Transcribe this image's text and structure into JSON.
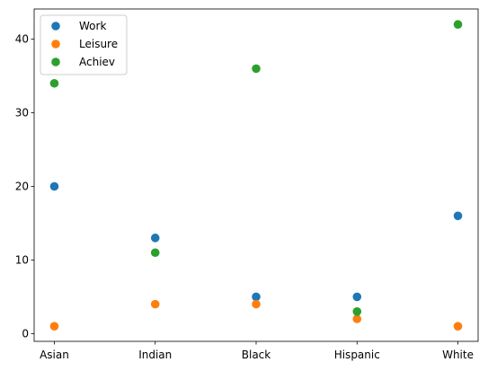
{
  "chart_data": {
    "type": "scatter",
    "categories": [
      "Asian",
      "Indian",
      "Black",
      "Hispanic",
      "White"
    ],
    "series": [
      {
        "name": "Work",
        "color": "#1f77b4",
        "values": [
          20,
          13,
          5,
          5,
          16
        ]
      },
      {
        "name": "Leisure",
        "color": "#ff7f0e",
        "values": [
          1,
          4,
          4,
          2,
          1
        ]
      },
      {
        "name": "Achiev",
        "color": "#2ca02c",
        "values": [
          34,
          11,
          36,
          3,
          42
        ]
      }
    ],
    "yticks": [
      0,
      10,
      20,
      30,
      40
    ],
    "ylim": [
      -1.05,
      44.1
    ],
    "legend": "top-left",
    "grid": false
  }
}
